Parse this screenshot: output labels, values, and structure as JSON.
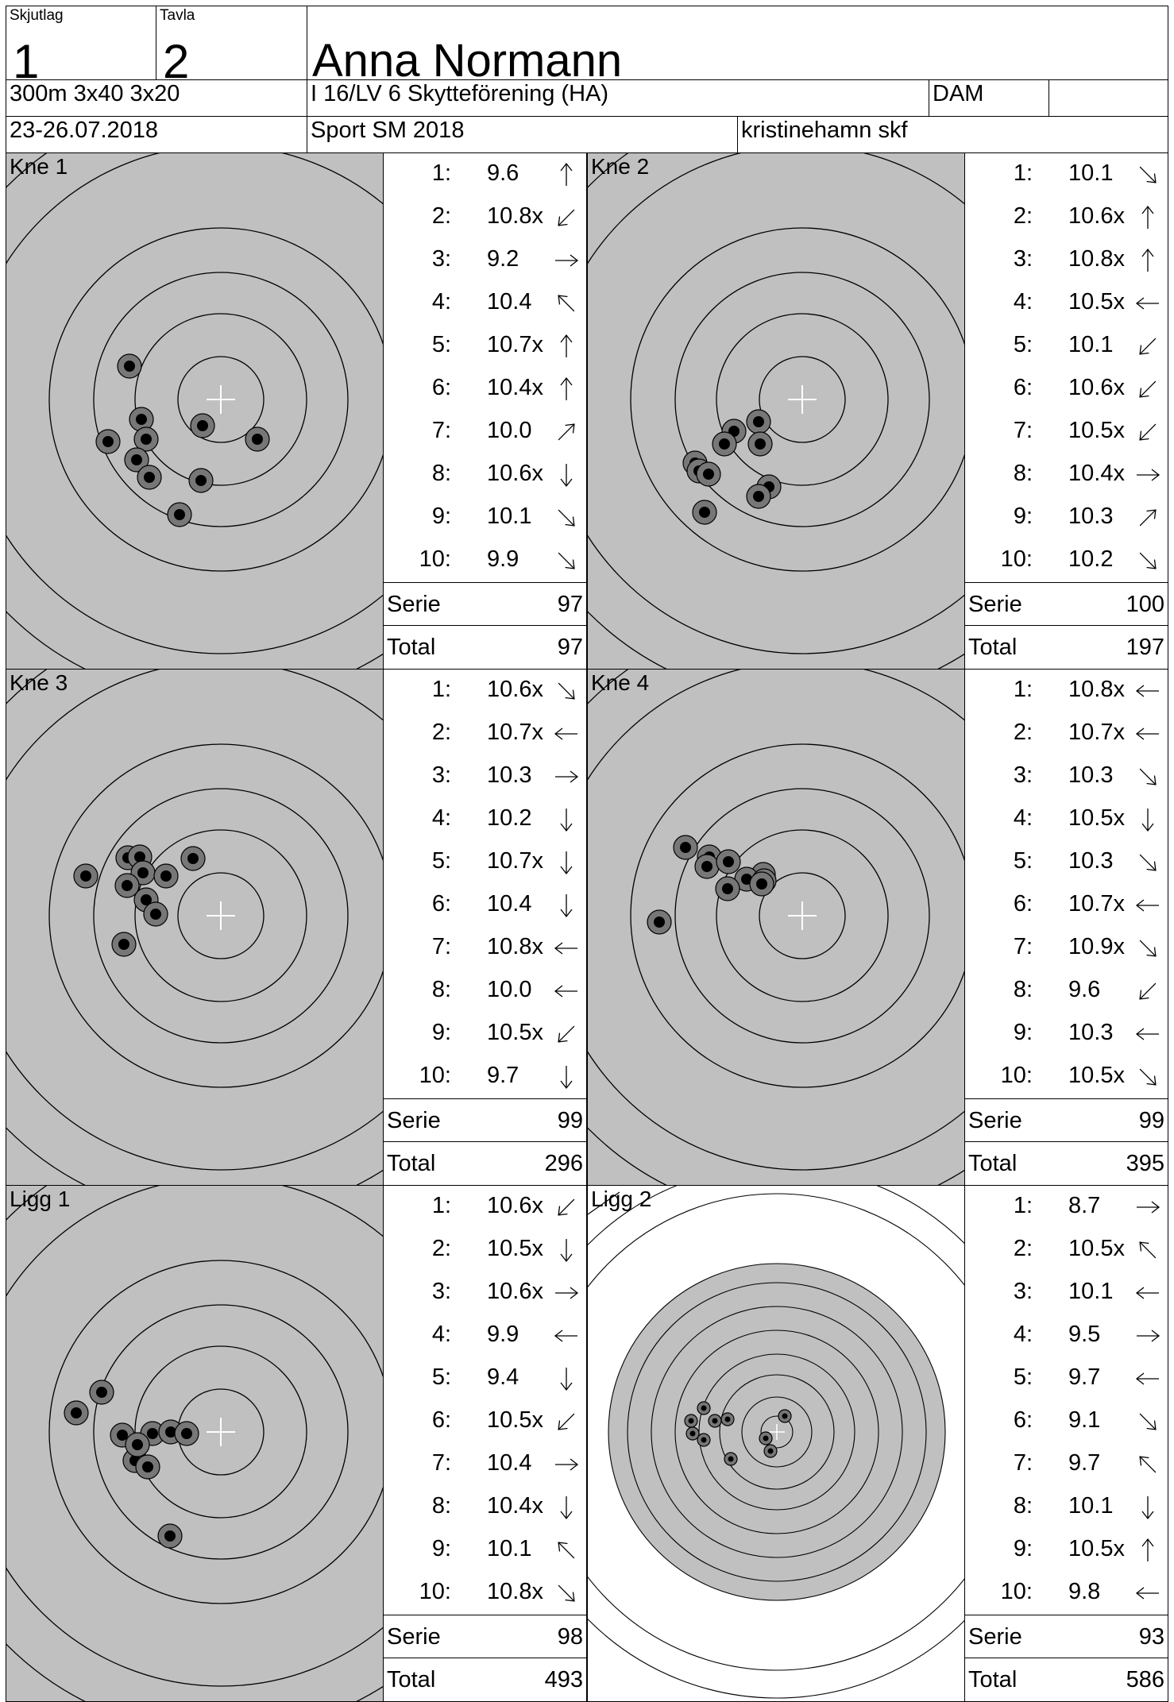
{
  "header": {
    "skjutlag_label": "Skjutlag",
    "skjutlag_value": "1",
    "tavla_label": "Tavla",
    "tavla_value": "2",
    "shooter_name": "Anna Normann",
    "discipline": "300m 3x40  3x20",
    "club": "I 16/LV 6 Skytteförening (HA)",
    "class": "DAM",
    "class_extra": "",
    "dates": "23-26.07.2018",
    "competition": "Sport SM 2018",
    "organizer": "kristinehamn skf"
  },
  "labels": {
    "serie": "Serie",
    "total": "Total"
  },
  "series": [
    {
      "title": "Kne 1",
      "serie": "97",
      "total": "97",
      "target": "kne",
      "shots": [
        {
          "n": "1:",
          "v": "9.6",
          "dir": "up"
        },
        {
          "n": "2:",
          "v": "10.8x",
          "dir": "down-left"
        },
        {
          "n": "3:",
          "v": "9.2",
          "dir": "right"
        },
        {
          "n": "4:",
          "v": "10.4",
          "dir": "up-left"
        },
        {
          "n": "5:",
          "v": "10.7x",
          "dir": "up"
        },
        {
          "n": "6:",
          "v": "10.4x",
          "dir": "up"
        },
        {
          "n": "7:",
          "v": "10.0",
          "dir": "up-right"
        },
        {
          "n": "8:",
          "v": "10.6x",
          "dir": "down"
        },
        {
          "n": "9:",
          "v": "10.1",
          "dir": "down-right"
        },
        {
          "n": "10:",
          "v": "9.9",
          "dir": "down-right"
        }
      ],
      "holes": [
        [
          155,
          268
        ],
        [
          170,
          335
        ],
        [
          128,
          363
        ],
        [
          176,
          360
        ],
        [
          164,
          386
        ],
        [
          180,
          408
        ],
        [
          247,
          343
        ],
        [
          316,
          360
        ],
        [
          245,
          412
        ],
        [
          218,
          455
        ]
      ]
    },
    {
      "title": "Kne 2",
      "serie": "100",
      "total": "197",
      "target": "kne",
      "shots": [
        {
          "n": "1:",
          "v": "10.1",
          "dir": "down-right"
        },
        {
          "n": "2:",
          "v": "10.6x",
          "dir": "up"
        },
        {
          "n": "3:",
          "v": "10.8x",
          "dir": "up"
        },
        {
          "n": "4:",
          "v": "10.5x",
          "dir": "left"
        },
        {
          "n": "5:",
          "v": "10.1",
          "dir": "down-left"
        },
        {
          "n": "6:",
          "v": "10.6x",
          "dir": "down-left"
        },
        {
          "n": "7:",
          "v": "10.5x",
          "dir": "down-left"
        },
        {
          "n": "8:",
          "v": "10.4x",
          "dir": "right"
        },
        {
          "n": "9:",
          "v": "10.3",
          "dir": "up-right"
        },
        {
          "n": "10:",
          "v": "10.2",
          "dir": "down-right"
        }
      ],
      "holes": [
        [
          215,
          338
        ],
        [
          184,
          350
        ],
        [
          172,
          366
        ],
        [
          217,
          366
        ],
        [
          135,
          390
        ],
        [
          140,
          400
        ],
        [
          152,
          404
        ],
        [
          228,
          420
        ],
        [
          215,
          432
        ],
        [
          147,
          452
        ]
      ]
    },
    {
      "title": "Kne 3",
      "serie": "99",
      "total": "296",
      "target": "kne",
      "shots": [
        {
          "n": "1:",
          "v": "10.6x",
          "dir": "down-right"
        },
        {
          "n": "2:",
          "v": "10.7x",
          "dir": "left"
        },
        {
          "n": "3:",
          "v": "10.3",
          "dir": "right"
        },
        {
          "n": "4:",
          "v": "10.2",
          "dir": "down"
        },
        {
          "n": "5:",
          "v": "10.7x",
          "dir": "down"
        },
        {
          "n": "6:",
          "v": "10.4",
          "dir": "down"
        },
        {
          "n": "7:",
          "v": "10.8x",
          "dir": "left"
        },
        {
          "n": "8:",
          "v": "10.0",
          "dir": "left"
        },
        {
          "n": "9:",
          "v": "10.5x",
          "dir": "down-left"
        },
        {
          "n": "10:",
          "v": "9.7",
          "dir": "down"
        }
      ],
      "holes": [
        [
          153,
          237
        ],
        [
          168,
          236
        ],
        [
          172,
          256
        ],
        [
          201,
          260
        ],
        [
          235,
          238
        ],
        [
          100,
          260
        ],
        [
          152,
          272
        ],
        [
          176,
          290
        ],
        [
          188,
          308
        ],
        [
          148,
          346
        ]
      ]
    },
    {
      "title": "Kne 4",
      "serie": "99",
      "total": "395",
      "target": "kne",
      "shots": [
        {
          "n": "1:",
          "v": "10.8x",
          "dir": "left"
        },
        {
          "n": "2:",
          "v": "10.7x",
          "dir": "left"
        },
        {
          "n": "3:",
          "v": "10.3",
          "dir": "down-right"
        },
        {
          "n": "4:",
          "v": "10.5x",
          "dir": "down"
        },
        {
          "n": "5:",
          "v": "10.3",
          "dir": "down-right"
        },
        {
          "n": "6:",
          "v": "10.7x",
          "dir": "left"
        },
        {
          "n": "7:",
          "v": "10.9x",
          "dir": "down-right"
        },
        {
          "n": "8:",
          "v": "9.6",
          "dir": "down-left"
        },
        {
          "n": "9:",
          "v": "10.3",
          "dir": "left"
        },
        {
          "n": "10:",
          "v": "10.5x",
          "dir": "down-right"
        }
      ],
      "holes": [
        [
          123,
          224
        ],
        [
          153,
          236
        ],
        [
          150,
          248
        ],
        [
          177,
          242
        ],
        [
          221,
          258
        ],
        [
          200,
          264
        ],
        [
          176,
          276
        ],
        [
          222,
          266
        ],
        [
          219,
          270
        ],
        [
          90,
          318
        ]
      ]
    },
    {
      "title": "Ligg 1",
      "serie": "98",
      "total": "493",
      "target": "kne",
      "shots": [
        {
          "n": "1:",
          "v": "10.6x",
          "dir": "down-left"
        },
        {
          "n": "2:",
          "v": "10.5x",
          "dir": "down"
        },
        {
          "n": "3:",
          "v": "10.6x",
          "dir": "right"
        },
        {
          "n": "4:",
          "v": "9.9",
          "dir": "left"
        },
        {
          "n": "5:",
          "v": "9.4",
          "dir": "down"
        },
        {
          "n": "6:",
          "v": "10.5x",
          "dir": "down-left"
        },
        {
          "n": "7:",
          "v": "10.4",
          "dir": "right"
        },
        {
          "n": "8:",
          "v": "10.4x",
          "dir": "down"
        },
        {
          "n": "9:",
          "v": "10.1",
          "dir": "up-left"
        },
        {
          "n": "10:",
          "v": "10.8x",
          "dir": "down-right"
        }
      ],
      "holes": [
        [
          120,
          260
        ],
        [
          88,
          286
        ],
        [
          146,
          314
        ],
        [
          184,
          312
        ],
        [
          207,
          310
        ],
        [
          227,
          312
        ],
        [
          162,
          346
        ],
        [
          178,
          354
        ],
        [
          165,
          326
        ],
        [
          206,
          441
        ]
      ]
    },
    {
      "title": "Ligg 2",
      "serie": "93",
      "total": "586",
      "target": "ligg",
      "shots": [
        {
          "n": "1:",
          "v": "8.7",
          "dir": "right"
        },
        {
          "n": "2:",
          "v": "10.5x",
          "dir": "up-left"
        },
        {
          "n": "3:",
          "v": "10.1",
          "dir": "left"
        },
        {
          "n": "4:",
          "v": "9.5",
          "dir": "right"
        },
        {
          "n": "5:",
          "v": "9.7",
          "dir": "left"
        },
        {
          "n": "6:",
          "v": "9.1",
          "dir": "down-right"
        },
        {
          "n": "7:",
          "v": "9.7",
          "dir": "up-left"
        },
        {
          "n": "8:",
          "v": "10.1",
          "dir": "down"
        },
        {
          "n": "9:",
          "v": "10.5x",
          "dir": "up"
        },
        {
          "n": "10:",
          "v": "9.8",
          "dir": "left"
        }
      ],
      "holes": [
        [
          146,
          280
        ],
        [
          130,
          296
        ],
        [
          160,
          296
        ],
        [
          176,
          294
        ],
        [
          132,
          312
        ],
        [
          248,
          290
        ],
        [
          224,
          318
        ],
        [
          146,
          320
        ],
        [
          230,
          334
        ],
        [
          180,
          344
        ]
      ]
    }
  ]
}
